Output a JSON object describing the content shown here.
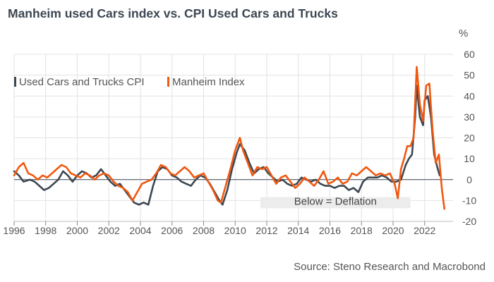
{
  "chart_data": {
    "type": "line",
    "title": "Manheim used Cars index vs. CPI Used Cars and Trucks",
    "unit_label": "%",
    "source": "Source: Steno Research and Macrobond",
    "annotation": "Below = Deflation",
    "xlim": [
      1996,
      2023.8
    ],
    "ylim": [
      -20,
      60
    ],
    "x_ticks": [
      1996,
      1998,
      2000,
      2002,
      2004,
      2006,
      2008,
      2010,
      2012,
      2014,
      2016,
      2018,
      2020,
      2022
    ],
    "y_ticks": [
      -20,
      -10,
      0,
      10,
      20,
      30,
      40,
      50,
      60
    ],
    "grid": true,
    "legend_position": "top-left",
    "colors": {
      "cpi": "#3d4752",
      "manheim": "#f0580f",
      "grid": "#e2e2e2",
      "zero_line": "#3d4752",
      "annotation_box": "#ececec"
    },
    "series": [
      {
        "name": "Used Cars and Trucks CPI",
        "color": "#3d4752",
        "points": [
          [
            1996.0,
            4
          ],
          [
            1996.3,
            2
          ],
          [
            1996.6,
            -1
          ],
          [
            1997.0,
            0
          ],
          [
            1997.3,
            -1
          ],
          [
            1997.6,
            -3
          ],
          [
            1997.9,
            -5
          ],
          [
            1998.2,
            -4
          ],
          [
            1998.5,
            -2
          ],
          [
            1998.8,
            0
          ],
          [
            1999.1,
            4
          ],
          [
            1999.4,
            2
          ],
          [
            1999.7,
            -1
          ],
          [
            2000.0,
            2
          ],
          [
            2000.3,
            4
          ],
          [
            2000.6,
            3
          ],
          [
            2000.9,
            1
          ],
          [
            2001.2,
            2
          ],
          [
            2001.5,
            5
          ],
          [
            2001.8,
            2
          ],
          [
            2002.1,
            -1
          ],
          [
            2002.4,
            -3
          ],
          [
            2002.7,
            -2
          ],
          [
            2003.0,
            -5
          ],
          [
            2003.3,
            -8
          ],
          [
            2003.6,
            -11
          ],
          [
            2003.9,
            -12
          ],
          [
            2004.2,
            -11
          ],
          [
            2004.5,
            -12
          ],
          [
            2004.8,
            -3
          ],
          [
            2005.1,
            4
          ],
          [
            2005.4,
            6
          ],
          [
            2005.7,
            5
          ],
          [
            2006.0,
            2
          ],
          [
            2006.3,
            1
          ],
          [
            2006.6,
            -1
          ],
          [
            2006.9,
            -2
          ],
          [
            2007.2,
            -3
          ],
          [
            2007.5,
            0
          ],
          [
            2007.8,
            2
          ],
          [
            2008.1,
            1
          ],
          [
            2008.4,
            -2
          ],
          [
            2008.7,
            -6
          ],
          [
            2009.0,
            -10
          ],
          [
            2009.2,
            -12
          ],
          [
            2009.5,
            -5
          ],
          [
            2009.8,
            5
          ],
          [
            2010.1,
            13
          ],
          [
            2010.3,
            17
          ],
          [
            2010.6,
            14
          ],
          [
            2010.9,
            8
          ],
          [
            2011.2,
            3
          ],
          [
            2011.5,
            5
          ],
          [
            2011.8,
            6
          ],
          [
            2012.1,
            3
          ],
          [
            2012.4,
            1
          ],
          [
            2012.7,
            -1
          ],
          [
            2013.0,
            0
          ],
          [
            2013.3,
            -2
          ],
          [
            2013.6,
            -3
          ],
          [
            2013.9,
            -2
          ],
          [
            2014.2,
            1
          ],
          [
            2014.5,
            0
          ],
          [
            2014.8,
            -1
          ],
          [
            2015.1,
            0
          ],
          [
            2015.4,
            -2
          ],
          [
            2015.7,
            -3
          ],
          [
            2016.0,
            -3
          ],
          [
            2016.3,
            -4
          ],
          [
            2016.6,
            -3
          ],
          [
            2016.9,
            -3
          ],
          [
            2017.2,
            -5
          ],
          [
            2017.5,
            -4
          ],
          [
            2017.8,
            -6
          ],
          [
            2018.1,
            -1
          ],
          [
            2018.4,
            1
          ],
          [
            2018.7,
            1
          ],
          [
            2019.0,
            1
          ],
          [
            2019.3,
            2
          ],
          [
            2019.6,
            1
          ],
          [
            2019.9,
            -1
          ],
          [
            2020.2,
            -1
          ],
          [
            2020.5,
            0
          ],
          [
            2020.8,
            7
          ],
          [
            2021.0,
            10
          ],
          [
            2021.2,
            12
          ],
          [
            2021.4,
            30
          ],
          [
            2021.5,
            45
          ],
          [
            2021.7,
            30
          ],
          [
            2021.9,
            26
          ],
          [
            2022.0,
            38
          ],
          [
            2022.2,
            40
          ],
          [
            2022.4,
            30
          ],
          [
            2022.6,
            12
          ],
          [
            2022.8,
            6
          ],
          [
            2022.95,
            2
          ]
        ]
      },
      {
        "name": "Manheim Index",
        "color": "#f0580f",
        "points": [
          [
            1996.0,
            2
          ],
          [
            1996.3,
            6
          ],
          [
            1996.6,
            8
          ],
          [
            1996.9,
            3
          ],
          [
            1997.2,
            2
          ],
          [
            1997.5,
            0
          ],
          [
            1997.8,
            2
          ],
          [
            1998.1,
            1
          ],
          [
            1998.4,
            3
          ],
          [
            1998.7,
            5
          ],
          [
            1999.0,
            7
          ],
          [
            1999.3,
            6
          ],
          [
            1999.6,
            3
          ],
          [
            1999.9,
            2
          ],
          [
            2000.2,
            1
          ],
          [
            2000.5,
            3
          ],
          [
            2000.8,
            2
          ],
          [
            2001.1,
            0
          ],
          [
            2001.4,
            2
          ],
          [
            2001.7,
            3
          ],
          [
            2002.0,
            2
          ],
          [
            2002.3,
            -1
          ],
          [
            2002.6,
            -3
          ],
          [
            2002.9,
            -4
          ],
          [
            2003.2,
            -6
          ],
          [
            2003.5,
            -10
          ],
          [
            2003.8,
            -6
          ],
          [
            2004.1,
            -2
          ],
          [
            2004.4,
            -1
          ],
          [
            2004.7,
            0
          ],
          [
            2005.0,
            3
          ],
          [
            2005.3,
            7
          ],
          [
            2005.6,
            6
          ],
          [
            2005.9,
            3
          ],
          [
            2006.2,
            2
          ],
          [
            2006.5,
            4
          ],
          [
            2006.8,
            6
          ],
          [
            2007.1,
            4
          ],
          [
            2007.4,
            1
          ],
          [
            2007.7,
            2
          ],
          [
            2008.0,
            3
          ],
          [
            2008.3,
            -1
          ],
          [
            2008.6,
            -5
          ],
          [
            2008.9,
            -10
          ],
          [
            2009.1,
            -11
          ],
          [
            2009.4,
            -3
          ],
          [
            2009.7,
            5
          ],
          [
            2010.0,
            14
          ],
          [
            2010.3,
            20
          ],
          [
            2010.5,
            14
          ],
          [
            2010.8,
            8
          ],
          [
            2011.1,
            2
          ],
          [
            2011.4,
            6
          ],
          [
            2011.7,
            5
          ],
          [
            2012.0,
            6
          ],
          [
            2012.3,
            2
          ],
          [
            2012.6,
            -2
          ],
          [
            2012.9,
            1
          ],
          [
            2013.2,
            2
          ],
          [
            2013.5,
            -1
          ],
          [
            2013.8,
            -4
          ],
          [
            2014.1,
            -2
          ],
          [
            2014.4,
            1
          ],
          [
            2014.7,
            -1
          ],
          [
            2015.0,
            -3
          ],
          [
            2015.3,
            0
          ],
          [
            2015.6,
            4
          ],
          [
            2015.9,
            -2
          ],
          [
            2016.2,
            -1
          ],
          [
            2016.5,
            1
          ],
          [
            2016.8,
            -2
          ],
          [
            2017.1,
            -1
          ],
          [
            2017.4,
            3
          ],
          [
            2017.7,
            2
          ],
          [
            2018.0,
            4
          ],
          [
            2018.3,
            6
          ],
          [
            2018.6,
            4
          ],
          [
            2018.9,
            2
          ],
          [
            2019.2,
            3
          ],
          [
            2019.5,
            2
          ],
          [
            2019.8,
            3
          ],
          [
            2020.1,
            -2
          ],
          [
            2020.3,
            -9
          ],
          [
            2020.5,
            5
          ],
          [
            2020.7,
            10
          ],
          [
            2020.9,
            16
          ],
          [
            2021.1,
            16
          ],
          [
            2021.3,
            20
          ],
          [
            2021.5,
            54
          ],
          [
            2021.7,
            36
          ],
          [
            2021.9,
            28
          ],
          [
            2022.1,
            45
          ],
          [
            2022.3,
            46
          ],
          [
            2022.5,
            24
          ],
          [
            2022.7,
            8
          ],
          [
            2022.9,
            12
          ],
          [
            2023.1,
            -5
          ],
          [
            2023.25,
            -14
          ]
        ]
      }
    ]
  }
}
